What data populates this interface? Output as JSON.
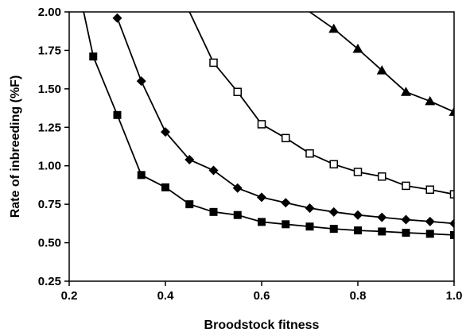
{
  "chart_data": {
    "type": "line",
    "title": "",
    "xlabel": "Broodstock fitness",
    "ylabel": "Rate of inbreeding (%F)",
    "xlim": [
      0.2,
      1.0
    ],
    "ylim": [
      0.25,
      2.0
    ],
    "x_ticks": [
      "0.2",
      "0.4",
      "0.6",
      "0.8",
      "1.0"
    ],
    "y_ticks": [
      "0.25",
      "0.50",
      "0.75",
      "1.00",
      "1.25",
      "1.50",
      "1.75",
      "2.00"
    ],
    "grid": false,
    "legend": "none",
    "series": [
      {
        "marker": "filled-square",
        "points": [
          [
            0.23,
            2.0
          ],
          [
            0.25,
            1.71
          ],
          [
            0.3,
            1.33
          ],
          [
            0.35,
            0.94
          ],
          [
            0.4,
            0.86
          ],
          [
            0.45,
            0.75
          ],
          [
            0.5,
            0.7
          ],
          [
            0.55,
            0.68
          ],
          [
            0.6,
            0.635
          ],
          [
            0.65,
            0.62
          ],
          [
            0.7,
            0.605
          ],
          [
            0.75,
            0.59
          ],
          [
            0.8,
            0.58
          ],
          [
            0.85,
            0.573
          ],
          [
            0.9,
            0.565
          ],
          [
            0.95,
            0.558
          ],
          [
            1.0,
            0.55
          ]
        ],
        "marked_from": 1
      },
      {
        "marker": "filled-diamond",
        "points": [
          [
            0.3,
            1.96
          ],
          [
            0.35,
            1.55
          ],
          [
            0.4,
            1.22
          ],
          [
            0.45,
            1.04
          ],
          [
            0.5,
            0.97
          ],
          [
            0.55,
            0.855
          ],
          [
            0.6,
            0.795
          ],
          [
            0.65,
            0.76
          ],
          [
            0.7,
            0.725
          ],
          [
            0.75,
            0.7
          ],
          [
            0.8,
            0.68
          ],
          [
            0.85,
            0.665
          ],
          [
            0.9,
            0.65
          ],
          [
            0.95,
            0.638
          ],
          [
            1.0,
            0.625
          ]
        ],
        "marked_from": 0
      },
      {
        "marker": "open-square",
        "points": [
          [
            0.45,
            2.0
          ],
          [
            0.5,
            1.67
          ],
          [
            0.55,
            1.48
          ],
          [
            0.6,
            1.27
          ],
          [
            0.65,
            1.18
          ],
          [
            0.7,
            1.08
          ],
          [
            0.75,
            1.01
          ],
          [
            0.8,
            0.96
          ],
          [
            0.85,
            0.93
          ],
          [
            0.9,
            0.87
          ],
          [
            0.95,
            0.845
          ],
          [
            1.0,
            0.815
          ]
        ],
        "marked_from": 1
      },
      {
        "marker": "filled-triangle",
        "points": [
          [
            0.7,
            2.0
          ],
          [
            0.75,
            1.89
          ],
          [
            0.8,
            1.76
          ],
          [
            0.85,
            1.62
          ],
          [
            0.9,
            1.48
          ],
          [
            0.95,
            1.42
          ],
          [
            1.0,
            1.35
          ]
        ],
        "marked_from": 1
      }
    ]
  }
}
